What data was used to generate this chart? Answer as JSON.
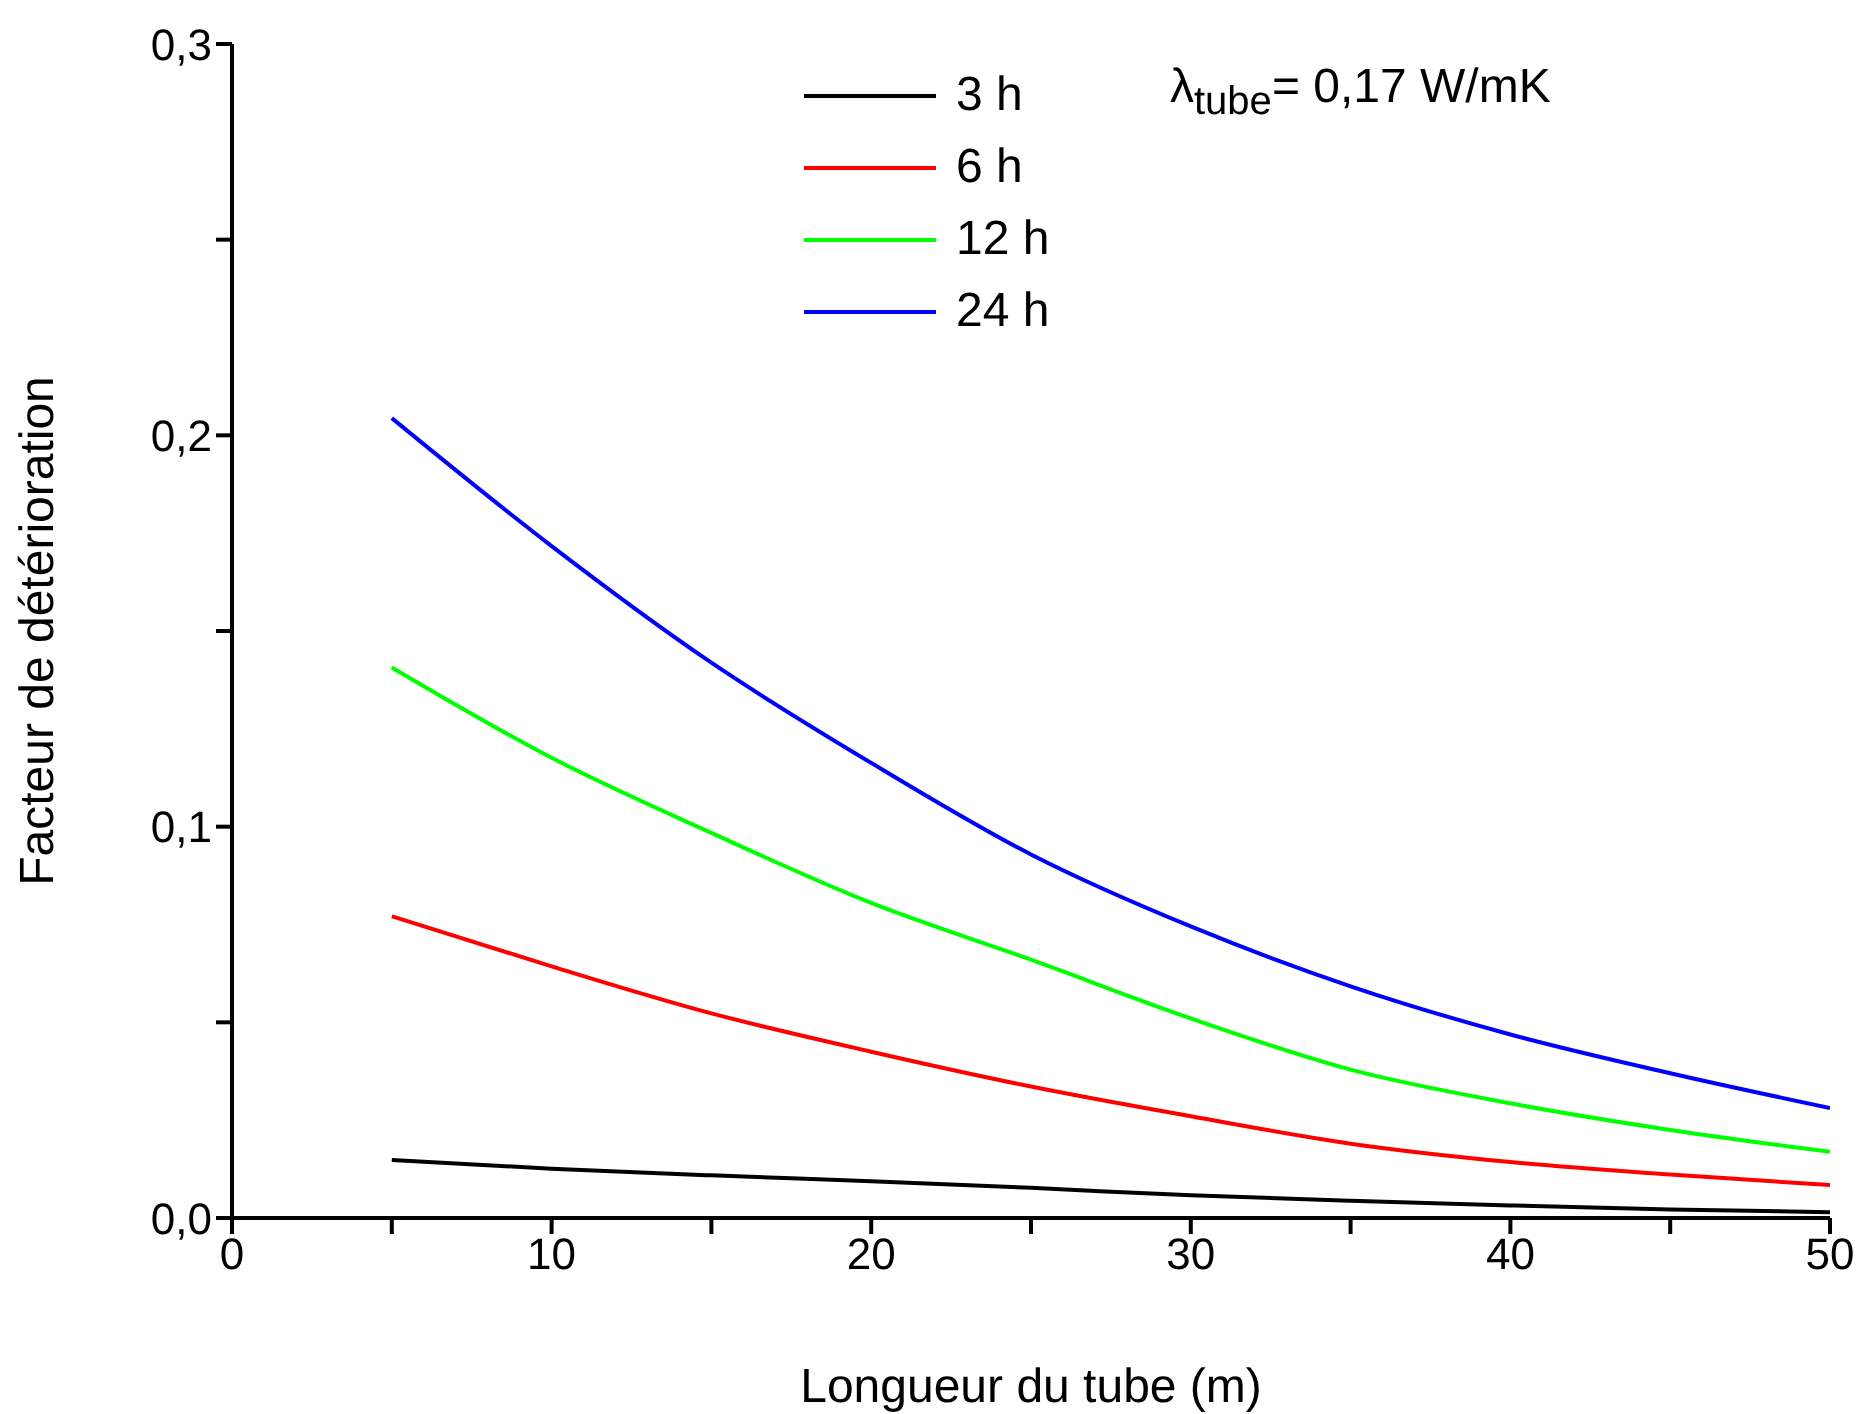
{
  "chart_data": {
    "type": "line",
    "xlabel": "Longueur du tube (m)",
    "ylabel": "Facteur de détérioration",
    "x": [
      5,
      10,
      15,
      20,
      25,
      30,
      35,
      40,
      45,
      50
    ],
    "series": [
      {
        "name": "3 h",
        "color": "#000000",
        "values": [
          0.0148,
          0.0126,
          0.0109,
          0.0094,
          0.0077,
          0.0058,
          0.0044,
          0.0032,
          0.0022,
          0.0015
        ]
      },
      {
        "name": "6 h",
        "color": "#ff0000",
        "values": [
          0.0771,
          0.0643,
          0.0523,
          0.0425,
          0.0336,
          0.026,
          0.019,
          0.0143,
          0.0111,
          0.0084
        ]
      },
      {
        "name": "12 h",
        "color": "#00ff00",
        "values": [
          0.1407,
          0.1176,
          0.0984,
          0.0805,
          0.066,
          0.051,
          0.0379,
          0.0293,
          0.0225,
          0.0169
        ]
      },
      {
        "name": "24 h",
        "color": "#0000ff",
        "values": [
          0.2044,
          0.1717,
          0.1419,
          0.1163,
          0.0929,
          0.0745,
          0.0592,
          0.0469,
          0.037,
          0.0281
        ]
      }
    ],
    "xlim": [
      0,
      50
    ],
    "xticks": [
      0,
      {
        "value": 5,
        "label": null
      },
      10,
      {
        "value": 15,
        "label": null
      },
      20,
      {
        "value": 25,
        "label": null
      },
      30,
      {
        "value": 35,
        "label": null
      },
      40,
      {
        "value": 45,
        "label": null
      },
      50
    ],
    "ylim": [
      0,
      0.3
    ],
    "yticks": [
      {
        "value": 0,
        "label": "0,0"
      },
      {
        "value": 0.05,
        "label": null
      },
      {
        "value": 0.1,
        "label": "0,1"
      },
      {
        "value": 0.15,
        "label": null
      },
      {
        "value": 0.2,
        "label": "0,2"
      },
      {
        "value": 0.25,
        "label": null
      },
      {
        "value": 0.3,
        "label": "0,3"
      }
    ],
    "annotations": [
      "λ$_{tube}$= 0,17 W/mK"
    ],
    "legend": "top",
    "grid": false,
    "marker": "none",
    "line_style": "solid"
  }
}
